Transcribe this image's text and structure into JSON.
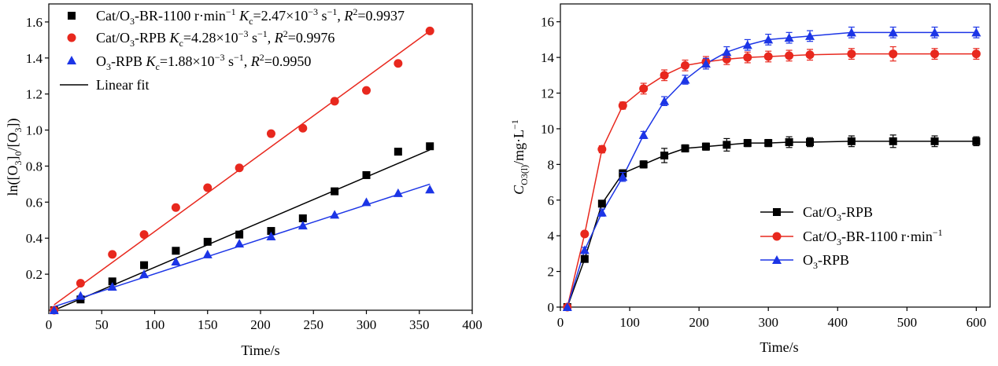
{
  "chart_data": [
    {
      "type": "scatter",
      "title": "",
      "xlabel": "Time/s",
      "ylabel": "ln([O3]0/[O3])",
      "xlim": [
        0,
        400
      ],
      "ylim": [
        0,
        1.7
      ],
      "xticks": [
        "0",
        "50",
        "100",
        "150",
        "200",
        "250",
        "300",
        "350",
        "400"
      ],
      "yticks": [
        "0.2",
        "0.4",
        "0.6",
        "0.8",
        "1.0",
        "1.2",
        "1.4",
        "1.6"
      ],
      "series": [
        {
          "name": "Cat/O3-BR-1100 r·min−1",
          "legend_tail": "=0.9937",
          "kc": "2.47",
          "kc_exp": "−3",
          "r2": "0.9937",
          "color": "#000000",
          "marker": "square",
          "x": [
            5,
            30,
            60,
            90,
            120,
            150,
            180,
            210,
            240,
            270,
            300,
            330,
            360
          ],
          "y": [
            0.0,
            0.06,
            0.16,
            0.25,
            0.33,
            0.38,
            0.42,
            0.44,
            0.51,
            0.66,
            0.75,
            0.88,
            0.91
          ],
          "fit": [
            [
              5,
              0.0
            ],
            [
              360,
              0.89
            ]
          ]
        },
        {
          "name": "Cat/O3-RPB",
          "kc": "4.28",
          "kc_exp": "−3",
          "r2": "0.9976",
          "color": "#e8281e",
          "marker": "circle",
          "x": [
            5,
            30,
            60,
            90,
            120,
            150,
            180,
            210,
            240,
            270,
            300,
            330,
            360
          ],
          "y": [
            0.0,
            0.15,
            0.31,
            0.42,
            0.57,
            0.68,
            0.79,
            0.98,
            1.01,
            1.16,
            1.22,
            1.37,
            1.55
          ],
          "fit": [
            [
              5,
              0.03
            ],
            [
              360,
              1.55
            ]
          ]
        },
        {
          "name": "O3-RPB",
          "kc": "1.88",
          "kc_exp": "−3",
          "r2": "0.9950",
          "color": "#1c35e6",
          "marker": "triangle",
          "x": [
            5,
            30,
            60,
            90,
            120,
            150,
            180,
            210,
            240,
            270,
            300,
            330,
            360
          ],
          "y": [
            0.0,
            0.08,
            0.13,
            0.2,
            0.27,
            0.31,
            0.37,
            0.41,
            0.47,
            0.53,
            0.6,
            0.65,
            0.67
          ],
          "fit": [
            [
              5,
              0.02
            ],
            [
              360,
              0.7
            ]
          ]
        }
      ],
      "legend": [
        {
          "label_html": "Cat/O<tspan class='sub' dy='5'>3</tspan><tspan dy='-5'>-BR-1100 r·min</tspan><tspan class='sup' dy='-7'>−1</tspan><tspan dy='7'> </tspan><tspan font-style='italic'>K</tspan><tspan class='sub' dy='5'>c</tspan><tspan dy='-5'>=2.47×10</tspan><tspan class='sup' dy='-7'>−3</tspan><tspan dy='7'> s</tspan><tspan class='sup' dy='-7'>−1</tspan><tspan dy='7'>, </tspan><tspan font-style='italic'>R</tspan><tspan class='sup' dy='-7'>2</tspan><tspan dy='7'>=0.9937</tspan>"
        },
        {
          "label_html": ""
        },
        {
          "label_html": ""
        }
      ],
      "fit_label": "Linear fit"
    },
    {
      "type": "line",
      "title": "",
      "xlabel": "Time/s",
      "ylabel": "CO3(l)/mg·L−1",
      "xlim": [
        0,
        620
      ],
      "ylim": [
        0,
        17
      ],
      "xticks": [
        "0",
        "100",
        "200",
        "300",
        "400",
        "500",
        "600"
      ],
      "yticks": [
        "0",
        "2",
        "4",
        "6",
        "8",
        "10",
        "12",
        "14",
        "16"
      ],
      "series": [
        {
          "name": "Cat/O3-RPB",
          "color": "#000000",
          "marker": "square",
          "x": [
            10,
            35,
            60,
            90,
            120,
            150,
            180,
            210,
            240,
            270,
            300,
            330,
            360,
            420,
            480,
            540,
            600
          ],
          "y": [
            0.0,
            2.7,
            5.8,
            7.5,
            8.0,
            8.5,
            8.9,
            9.0,
            9.1,
            9.2,
            9.2,
            9.25,
            9.25,
            9.3,
            9.3,
            9.3,
            9.3
          ],
          "err": [
            0,
            0.15,
            0.15,
            0.2,
            0.2,
            0.4,
            0.2,
            0.2,
            0.35,
            0.2,
            0.2,
            0.3,
            0.25,
            0.3,
            0.35,
            0.3,
            0.25
          ]
        },
        {
          "name": "Cat/O3-BR-1100 r·min−1",
          "color": "#e8281e",
          "marker": "circle",
          "x": [
            10,
            35,
            60,
            90,
            120,
            150,
            180,
            210,
            240,
            270,
            300,
            330,
            360,
            420,
            480,
            540,
            600
          ],
          "y": [
            0.0,
            4.1,
            8.85,
            11.3,
            12.25,
            13.0,
            13.55,
            13.75,
            13.9,
            14.0,
            14.05,
            14.1,
            14.15,
            14.2,
            14.2,
            14.2,
            14.2
          ],
          "err": [
            0,
            0.15,
            0.2,
            0.2,
            0.3,
            0.3,
            0.3,
            0.3,
            0.3,
            0.3,
            0.3,
            0.3,
            0.3,
            0.3,
            0.4,
            0.3,
            0.3
          ]
        },
        {
          "name": "O3-RPB",
          "color": "#1c35e6",
          "marker": "triangle",
          "x": [
            10,
            35,
            60,
            90,
            120,
            150,
            180,
            210,
            240,
            270,
            300,
            330,
            360,
            420,
            480,
            540,
            600
          ],
          "y": [
            0.0,
            3.2,
            5.3,
            7.3,
            9.65,
            11.55,
            12.75,
            13.65,
            14.3,
            14.7,
            15.0,
            15.1,
            15.2,
            15.4,
            15.4,
            15.4,
            15.4
          ],
          "err": [
            0,
            0.15,
            0.2,
            0.25,
            0.2,
            0.25,
            0.25,
            0.3,
            0.3,
            0.3,
            0.3,
            0.3,
            0.3,
            0.3,
            0.3,
            0.3,
            0.3
          ]
        }
      ],
      "legend_position": "bottom-right"
    }
  ],
  "text": {
    "left_xlabel": "Time/s",
    "right_xlabel": "Time/s",
    "left_ylabel_pre": "ln([O",
    "left_ylabel_sub1": "3",
    "left_ylabel_mid": "]",
    "left_ylabel_sub2": "0",
    "left_ylabel_mid2": "/[O",
    "left_ylabel_sub3": "3",
    "left_ylabel_post": "])",
    "right_ylabel_C": "C",
    "right_ylabel_sub": "O3(l)",
    "right_ylabel_mid": "/mg·L",
    "right_ylabel_sup": "−1",
    "leg1_a1": "Cat/O",
    "leg1_a2": "3",
    "leg1_a3": "-BR-1100 r·min",
    "leg1_a4": "−1",
    "leg1_K": "K",
    "leg1_c": "c",
    "leg1_a5": "=2.47×10",
    "leg1_a6": "−3",
    "leg1_a7": " s",
    "leg1_a8": "−1",
    "leg1_a9": ", ",
    "leg1_R": "R",
    "leg1_2": "2",
    "leg1_a10": "=0.9937",
    "leg2_a1": "Cat/O",
    "leg2_a2": "3",
    "leg2_a3": "-RPB ",
    "leg2_K": "K",
    "leg2_c": "c",
    "leg2_a5": "=4.28×10",
    "leg2_a6": "−3",
    "leg2_a7": " s",
    "leg2_a8": "−1",
    "leg2_a9": ", ",
    "leg2_R": "R",
    "leg2_2": "2",
    "leg2_a10": "=0.9976",
    "leg3_a1": "O",
    "leg3_a2": "3",
    "leg3_a3": "-RPB ",
    "leg3_K": "K",
    "leg3_c": "c",
    "leg3_a5": "=1.88×10",
    "leg3_a6": "−3",
    "leg3_a7": " s",
    "leg3_a8": "−1",
    "leg3_a9": ", ",
    "leg3_R": "R",
    "leg3_2": "2",
    "leg3_a10": "=0.9950",
    "leg4": "Linear fit",
    "rleg1_a": "Cat/O",
    "rleg1_b": "3",
    "rleg1_c": "-RPB",
    "rleg2_a": "Cat/O",
    "rleg2_b": "3",
    "rleg2_c": "-BR-1100 r·min",
    "rleg2_d": "−1",
    "rleg3_a": "O",
    "rleg3_b": "3",
    "rleg3_c": "-RPB"
  }
}
